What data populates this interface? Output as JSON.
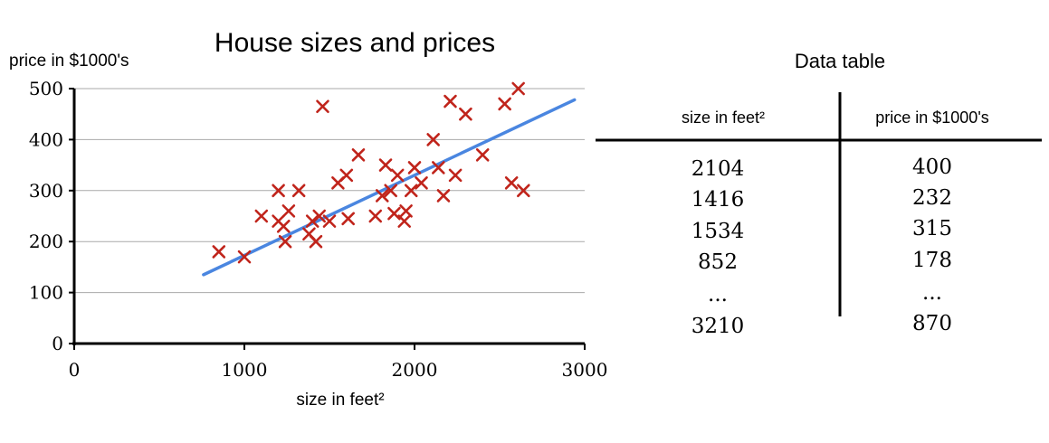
{
  "chart_data": {
    "type": "scatter",
    "title": "House sizes and prices",
    "xlabel": "size in feet²",
    "ylabel": "price in $1000's",
    "xlim": [
      0,
      3000
    ],
    "ylim": [
      0,
      500
    ],
    "x_ticks": [
      0,
      1000,
      2000,
      3000
    ],
    "y_ticks": [
      0,
      100,
      200,
      300,
      400,
      500
    ],
    "grid": "horizontal",
    "colors": {
      "points": "#c0241b",
      "line": "#4a86e0",
      "grid": "#aaaaaa"
    },
    "points": [
      [
        850,
        180
      ],
      [
        1000,
        170
      ],
      [
        1100,
        250
      ],
      [
        1200,
        300
      ],
      [
        1200,
        240
      ],
      [
        1230,
        230
      ],
      [
        1240,
        200
      ],
      [
        1260,
        260
      ],
      [
        1320,
        300
      ],
      [
        1380,
        215
      ],
      [
        1400,
        240
      ],
      [
        1420,
        200
      ],
      [
        1440,
        250
      ],
      [
        1460,
        465
      ],
      [
        1500,
        240
      ],
      [
        1550,
        315
      ],
      [
        1600,
        330
      ],
      [
        1610,
        245
      ],
      [
        1670,
        370
      ],
      [
        1770,
        250
      ],
      [
        1810,
        290
      ],
      [
        1830,
        350
      ],
      [
        1860,
        300
      ],
      [
        1880,
        255
      ],
      [
        1900,
        330
      ],
      [
        1940,
        240
      ],
      [
        1950,
        260
      ],
      [
        1980,
        300
      ],
      [
        2000,
        345
      ],
      [
        2040,
        315
      ],
      [
        2110,
        400
      ],
      [
        2140,
        345
      ],
      [
        2170,
        290
      ],
      [
        2210,
        475
      ],
      [
        2240,
        330
      ],
      [
        2300,
        450
      ],
      [
        2400,
        370
      ],
      [
        2530,
        470
      ],
      [
        2570,
        315
      ],
      [
        2610,
        500
      ],
      [
        2640,
        300
      ]
    ],
    "fit_line": [
      [
        760,
        135
      ],
      [
        2940,
        478
      ]
    ]
  },
  "data_table": {
    "title": "Data table",
    "col1_header": "size in feet²",
    "col2_header": "price in $1000's",
    "rows": [
      [
        "2104",
        "400"
      ],
      [
        "1416",
        "232"
      ],
      [
        "1534",
        "315"
      ],
      [
        "852",
        "178"
      ],
      [
        "...",
        "..."
      ],
      [
        "3210",
        "870"
      ]
    ]
  }
}
